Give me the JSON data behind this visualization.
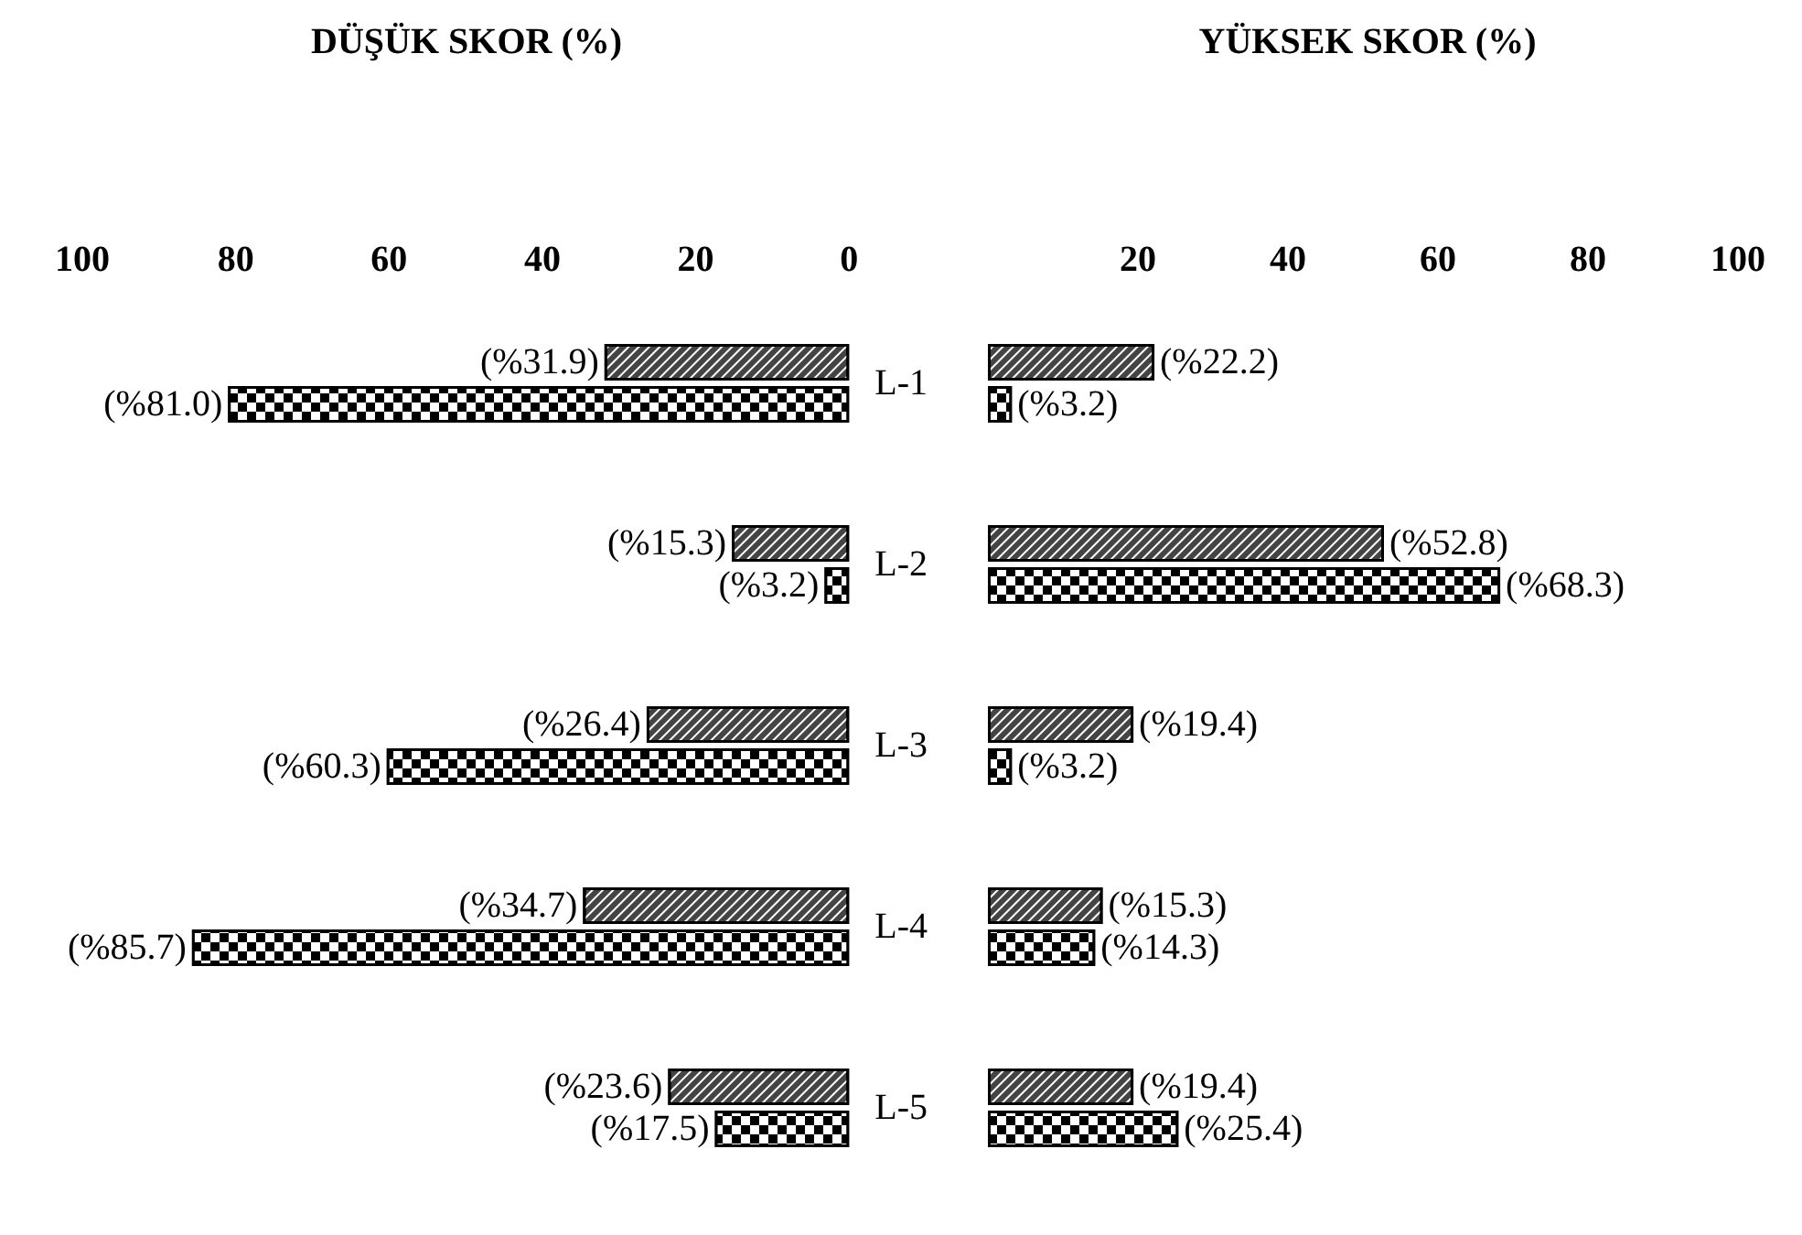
{
  "chart_data": [
    {
      "type": "bar",
      "orientation": "horizontal",
      "title": "DÜŞÜK SKOR (%)",
      "categories": [
        "L-1",
        "L-2",
        "L-3",
        "L-4",
        "L-5"
      ],
      "xlim": [
        100,
        0
      ],
      "xticks": [
        100,
        80,
        60,
        40,
        20,
        0
      ],
      "grid": false,
      "series": [
        {
          "color": "#444444",
          "values": [
            31.9,
            15.3,
            26.4,
            34.7,
            23.6
          ],
          "value_labels": [
            "(%31.9)",
            "(%15.3)",
            "(%26.4)",
            "(%34.7)",
            "(%23.6)"
          ]
        },
        {
          "color": "#000000",
          "values": [
            81.0,
            3.2,
            60.3,
            85.7,
            17.5
          ],
          "value_labels": [
            "(%81.0)",
            "(%3.2)",
            "(%60.3)",
            "(%85.7)",
            "(%17.5)"
          ]
        }
      ]
    },
    {
      "type": "bar",
      "orientation": "horizontal",
      "title": "YÜKSEK SKOR (%)",
      "categories": [
        null,
        null,
        null,
        null,
        null
      ],
      "xlim": [
        0,
        100
      ],
      "xticks": [
        20,
        40,
        60,
        80,
        100
      ],
      "grid": false,
      "tick_labels": "x",
      "series": [
        {
          "color": "#444444",
          "values": [
            22.2,
            52.8,
            19.4,
            15.3,
            19.4
          ],
          "value_labels": [
            "(%22.2)",
            "(%52.8)",
            "(%19.4)",
            "(%15.3)",
            "(%19.4)"
          ]
        },
        {
          "color": "#000000",
          "values": [
            3.2,
            68.3,
            3.2,
            14.3,
            25.4
          ],
          "value_labels": [
            "(%3.2)",
            "(%68.3)",
            "(%3.2)",
            "(%14.3)",
            "(%25.4)"
          ]
        }
      ]
    }
  ]
}
